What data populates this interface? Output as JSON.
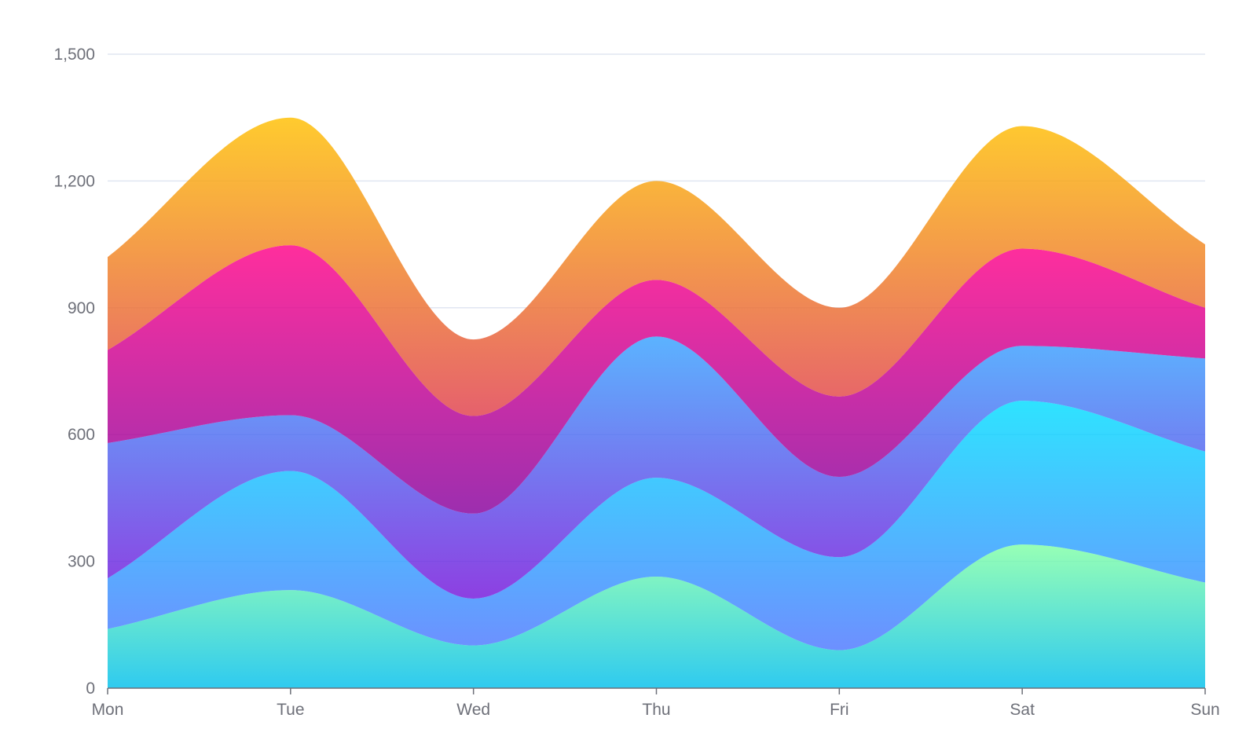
{
  "chart_data": {
    "type": "area",
    "stacked": true,
    "smooth": true,
    "categories": [
      "Mon",
      "Tue",
      "Wed",
      "Thu",
      "Fri",
      "Sat",
      "Sun"
    ],
    "ylim": [
      0,
      1500
    ],
    "yticks": [
      0,
      300,
      600,
      900,
      1200,
      1500
    ],
    "ytick_labels": [
      "0",
      "300",
      "600",
      "900",
      "1,200",
      "1,500"
    ],
    "grid": true,
    "legend": "none",
    "title": "",
    "xlabel": "",
    "ylabel": "",
    "series": [
      {
        "values": [
          140,
          232,
          101,
          264,
          90,
          340,
          250
        ],
        "color_top": "#80ffa5",
        "color_bottom": "#01bfec"
      },
      {
        "values": [
          120,
          282,
          111,
          234,
          220,
          340,
          310
        ],
        "color_top": "#00ddff",
        "color_bottom": "#4d77ff"
      },
      {
        "values": [
          320,
          132,
          201,
          334,
          190,
          130,
          220
        ],
        "color_top": "#37a2ff",
        "color_bottom": "#7415db"
      },
      {
        "values": [
          220,
          402,
          231,
          134,
          190,
          230,
          120
        ],
        "color_top": "#ff0087",
        "color_bottom": "#87009d"
      },
      {
        "values": [
          220,
          302,
          181,
          234,
          210,
          290,
          150
        ],
        "color_top": "#ffbf00",
        "color_bottom": "#e03e4c"
      }
    ]
  }
}
